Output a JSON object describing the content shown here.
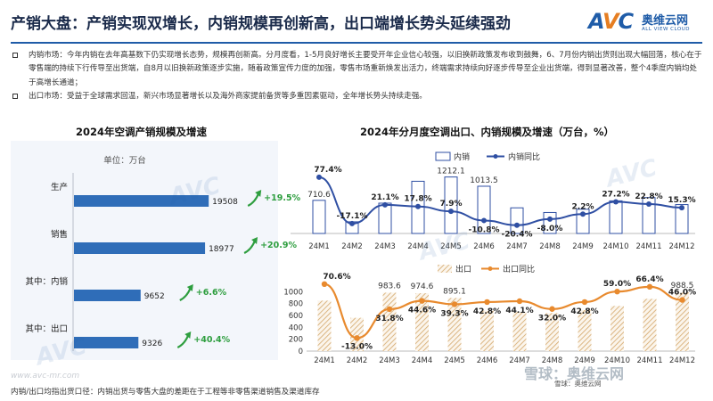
{
  "header": {
    "title": "产销大盘：产销实现双增长，内销规模再创新高，出口端增长势头延续强劲",
    "logo_cn": "奥维云网",
    "logo_en": "ALL VIEW CLOUD"
  },
  "bullets": [
    "内销市场：今年内销在去年高基数下仍实现增长态势，规模再创新高。分月度看，1-5月良好增长主要受开年企业信心较强，以旧换新政策发布收到鼓舞，6、7月份内销出货则出现大幅回落，核心在于零售端的持续下行传导至出货端，自8月以旧换新政策逐步实施，随着政策宣传力度的加强，零售市场重新焕发出活力，终端需求持续向好逐步传导至企业出货端，得到显著改善，整个4季度内销均处于高增长通道；",
    "出口市场：受益于全球需求回温，新兴市场显著增长以及海外商家提前备货等多重因素驱动，全年增长势头持续走强。"
  ],
  "footnote": "内销/出口均指出货口径：内销出货与零售大盘的差距在于工程等非零售渠道销售及渠道库存",
  "site": "www.avc-mr.com",
  "source_label": "雪球：奥维云网",
  "xueqiu_label": "雪球：奥维云网",
  "colors": {
    "brand": "#1f5ca8",
    "bar": "#2f6db8",
    "line": "#2f4fa3",
    "export_line": "#e88a2e",
    "hatch": "#d4a76a",
    "up_arrow": "#2e9e3f",
    "pct_text": "#2e9e3f"
  },
  "chart_data": [
    {
      "type": "bar",
      "title": "2024年空调产销规模及增速",
      "unit_label": "单位：万台",
      "categories": [
        "生产",
        "销售",
        "其中：内销",
        "其中：出口"
      ],
      "values": [
        19508,
        18977,
        9652,
        9326
      ],
      "growth_labels": [
        "+19.5%",
        "+20.9%",
        "+6.6%",
        "+40.4%"
      ],
      "orientation": "horizontal"
    },
    {
      "type": "bar",
      "title": "2024年分月度空调出口、内销规模及增速（万台，%）",
      "categories": [
        "24M1",
        "24M2",
        "24M3",
        "24M4",
        "24M5",
        "24M6",
        "24M7",
        "24M8",
        "24M9",
        "24M10",
        "24M11",
        "24M12"
      ],
      "series": [
        {
          "name": "内销",
          "values": [
            710.6,
            250,
            650,
            1120,
            1212.1,
            1013.5,
            550,
            450,
            520,
            700,
            770,
            620
          ]
        },
        {
          "name": "内销同比",
          "values": [
            77.4,
            -17.1,
            21.1,
            17.8,
            7.9,
            -10.8,
            -20.4,
            -8.0,
            2.2,
            27.2,
            22.8,
            15.3
          ]
        }
      ],
      "bar_value_labels": [
        "710.6",
        "",
        "",
        "",
        "1212.1",
        "1013.5",
        "",
        "",
        "",
        "",
        "",
        ""
      ],
      "line_value_labels": [
        "77.4%",
        "-17.1%",
        "21.1%",
        "17.8%",
        "7.9%",
        "-10.8%",
        "-20.4%",
        "-8.0%",
        "2.2%",
        "27.2%",
        "22.8%",
        "15.3%"
      ]
    },
    {
      "type": "bar",
      "categories": [
        "24M1",
        "24M2",
        "24M3",
        "24M4",
        "24M5",
        "24M6",
        "24M7",
        "24M8",
        "24M9",
        "24M10",
        "24M11",
        "24M12"
      ],
      "series": [
        {
          "name": "出口",
          "values": [
            850,
            560,
            983.6,
            974.6,
            895.1,
            680,
            660,
            640,
            690,
            760,
            880,
            988.5
          ]
        },
        {
          "name": "出口同比",
          "values": [
            70.6,
            -13.0,
            31.8,
            44.6,
            39.3,
            42.8,
            44.1,
            32.0,
            42.8,
            59.0,
            66.4,
            46.0
          ]
        }
      ],
      "bar_value_labels": [
        "",
        "",
        "983.6",
        "974.6",
        "895.1",
        "",
        "",
        "",
        "",
        "",
        "",
        "988.5"
      ],
      "line_value_labels": [
        "70.6%",
        "-13.0%",
        "31.8%",
        "44.6%",
        "39.3%",
        "42.8%",
        "44.1%",
        "32.0%",
        "42.8%",
        "59.0%",
        "66.4%",
        "46.0%"
      ],
      "ylim": [
        0,
        1200
      ],
      "yticks": [
        0,
        200,
        400,
        600,
        800,
        1000
      ]
    }
  ]
}
